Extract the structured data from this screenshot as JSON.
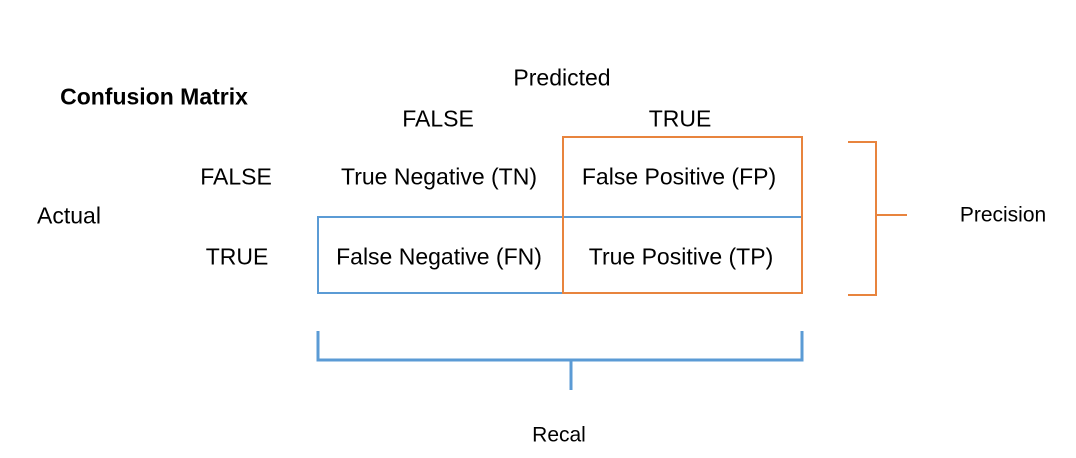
{
  "title": "Confusion Matrix",
  "predicted": {
    "label": "Predicted",
    "columns": [
      "FALSE",
      "TRUE"
    ]
  },
  "actual": {
    "label": "Actual",
    "rows": [
      "FALSE",
      "TRUE"
    ]
  },
  "cells": {
    "tn": "True Negative (TN)",
    "fp": "False Positive (FP)",
    "fn": "False Negative (FN)",
    "tp": "True Positive (TP)"
  },
  "brackets": {
    "precision_label": "Precision",
    "recall_label": "Recal"
  },
  "colors": {
    "precision": "#e8843e",
    "recall": "#5b9bd5",
    "text": "#000000"
  }
}
